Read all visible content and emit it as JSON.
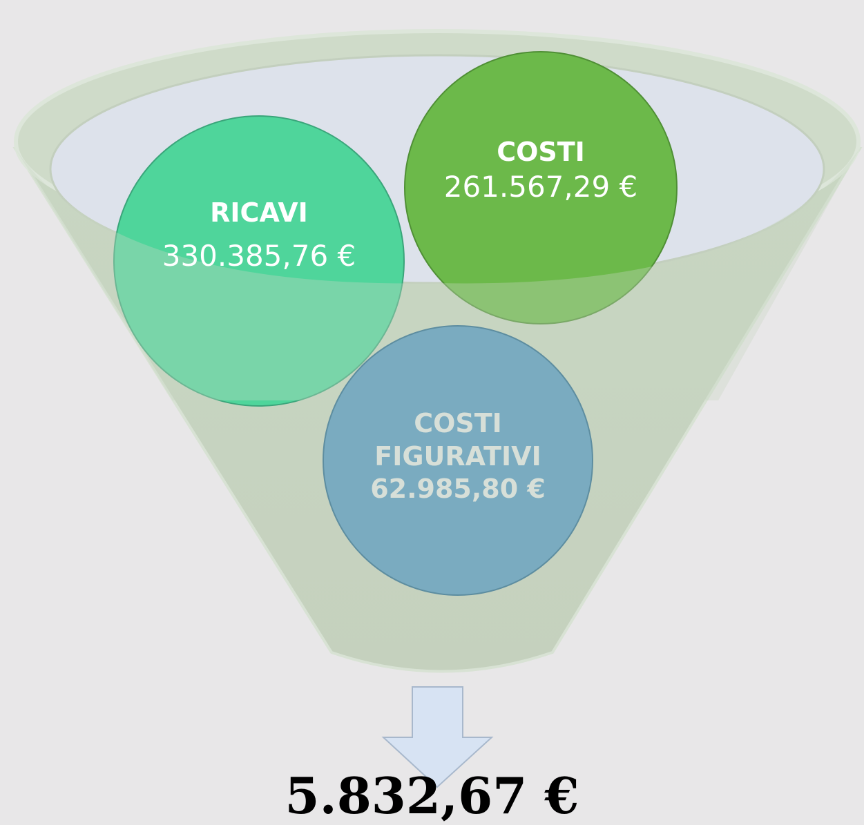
{
  "nodes": [
    {
      "title": "RICAVI",
      "amount": "330.385,76 €"
    },
    {
      "title": "COSTI",
      "amount": "261.567,29 €"
    },
    {
      "title": "COSTI FIGURATIVI",
      "amount": "62.985,80 €"
    }
  ],
  "result": "5.832,67 €"
}
